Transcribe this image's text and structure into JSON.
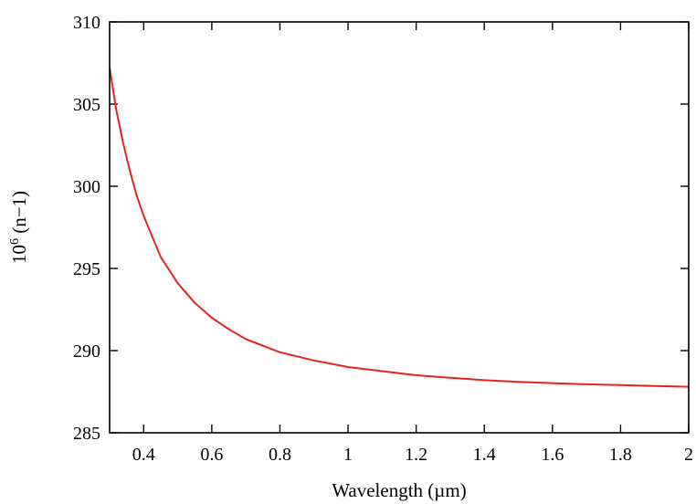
{
  "chart_data": {
    "type": "line",
    "title": "",
    "xlabel": "Wavelength (µm)",
    "ylabel_base": "10",
    "ylabel_exp": "6",
    "ylabel_rest": " (n−1)",
    "xlim": [
      0.3,
      2.0
    ],
    "ylim": [
      285,
      310
    ],
    "xticks": [
      0.4,
      0.6,
      0.8,
      1.0,
      1.2,
      1.4,
      1.6,
      1.8,
      2.0
    ],
    "xtick_labels": [
      "0.4",
      "0.6",
      "0.8",
      "1",
      "1.2",
      "1.4",
      "1.6",
      "1.8",
      "2"
    ],
    "yticks": [
      285,
      290,
      295,
      300,
      305,
      310
    ],
    "ytick_labels": [
      "285",
      "290",
      "295",
      "300",
      "305",
      "310"
    ],
    "grid": false,
    "series": [
      {
        "color": "#e8231b",
        "x": [
          0.3,
          0.32,
          0.34,
          0.36,
          0.38,
          0.4,
          0.45,
          0.5,
          0.55,
          0.6,
          0.65,
          0.7,
          0.8,
          0.9,
          1.0,
          1.1,
          1.2,
          1.3,
          1.4,
          1.5,
          1.6,
          1.7,
          1.8,
          1.9,
          2.0
        ],
        "y": [
          307.2,
          304.6,
          302.6,
          300.9,
          299.4,
          298.2,
          295.7,
          294.1,
          292.9,
          292.0,
          291.3,
          290.7,
          289.9,
          289.4,
          289.0,
          288.75,
          288.5,
          288.35,
          288.2,
          288.1,
          288.02,
          287.95,
          287.9,
          287.85,
          287.8
        ]
      }
    ]
  }
}
